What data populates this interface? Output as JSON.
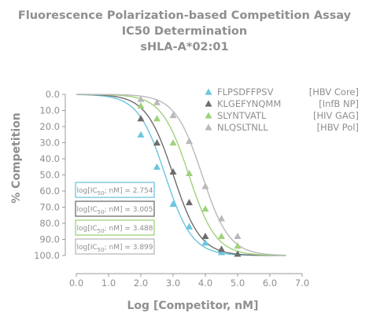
{
  "titles": [
    "Fluorescence Polarization-based Competition Assay",
    "IC50 Determination",
    "sHLA-A*02:01"
  ],
  "chart_data": {
    "type": "scatter",
    "title": "Fluorescence Polarization-based Competition Assay IC50 Determination sHLA-A*02:01",
    "xlabel": "Log [Competitor, nM]",
    "ylabel": "% Competition",
    "xlim": [
      0.0,
      7.0
    ],
    "ylim": [
      0.0,
      100.0
    ],
    "y_inverted": true,
    "x_ticks": [
      "0.0",
      "1.0",
      "2.0",
      "3.0",
      "4.0",
      "5.0",
      "6.0",
      "7.0"
    ],
    "y_ticks": [
      "0.0",
      "10.0",
      "20.0",
      "30.0",
      "40.0",
      "50.0",
      "60.0",
      "70.0",
      "80.0",
      "90.0",
      "100.0"
    ],
    "legend_position": "top-right",
    "series": [
      {
        "name": "FLPSDFFPSV",
        "tag": "[HBV Core]",
        "color": "#6cc5df",
        "log_ic50": 2.754,
        "x": [
          2.0,
          2.5,
          3.0,
          3.5,
          4.0,
          4.5,
          5.0
        ],
        "y": [
          25,
          45,
          68,
          82,
          92,
          98,
          99
        ]
      },
      {
        "name": "KLGEFYNQMM",
        "tag": "[InfB NP]",
        "color": "#6d6d6d",
        "log_ic50": 3.005,
        "x": [
          2.0,
          2.5,
          3.0,
          3.5,
          4.0,
          4.5,
          5.0
        ],
        "y": [
          15,
          30,
          48,
          67,
          88,
          96,
          99
        ]
      },
      {
        "name": "SLYNTVATL",
        "tag": "[HIV GAG]",
        "color": "#9fd27b",
        "log_ic50": 3.488,
        "x": [
          2.0,
          2.5,
          3.0,
          3.5,
          4.0,
          4.5,
          5.0
        ],
        "y": [
          7,
          15,
          30,
          49,
          71,
          88,
          94
        ]
      },
      {
        "name": "NLQSLTNLL",
        "tag": "[HBV Pol]",
        "color": "#b9b9b9",
        "log_ic50": 3.899,
        "x": [
          2.0,
          2.5,
          3.0,
          3.5,
          4.0,
          4.5,
          5.0
        ],
        "y": [
          3,
          5,
          13,
          29,
          57,
          77,
          88
        ]
      }
    ],
    "annotations": [
      {
        "prefix": "log[IC",
        "sub": "50",
        "suffix": "; nM] = 2.754",
        "border": "#6cc5df"
      },
      {
        "prefix": "log[IC",
        "sub": "50",
        "suffix": "; nM] = 3.005",
        "border": "#6d6d6d"
      },
      {
        "prefix": "log[IC",
        "sub": "50",
        "suffix": "; nM] = 3.488",
        "border": "#9fd27b"
      },
      {
        "prefix": "log[IC",
        "sub": "50",
        "suffix": "; nM] = 3.899",
        "border": "#b9b9b9"
      }
    ]
  }
}
